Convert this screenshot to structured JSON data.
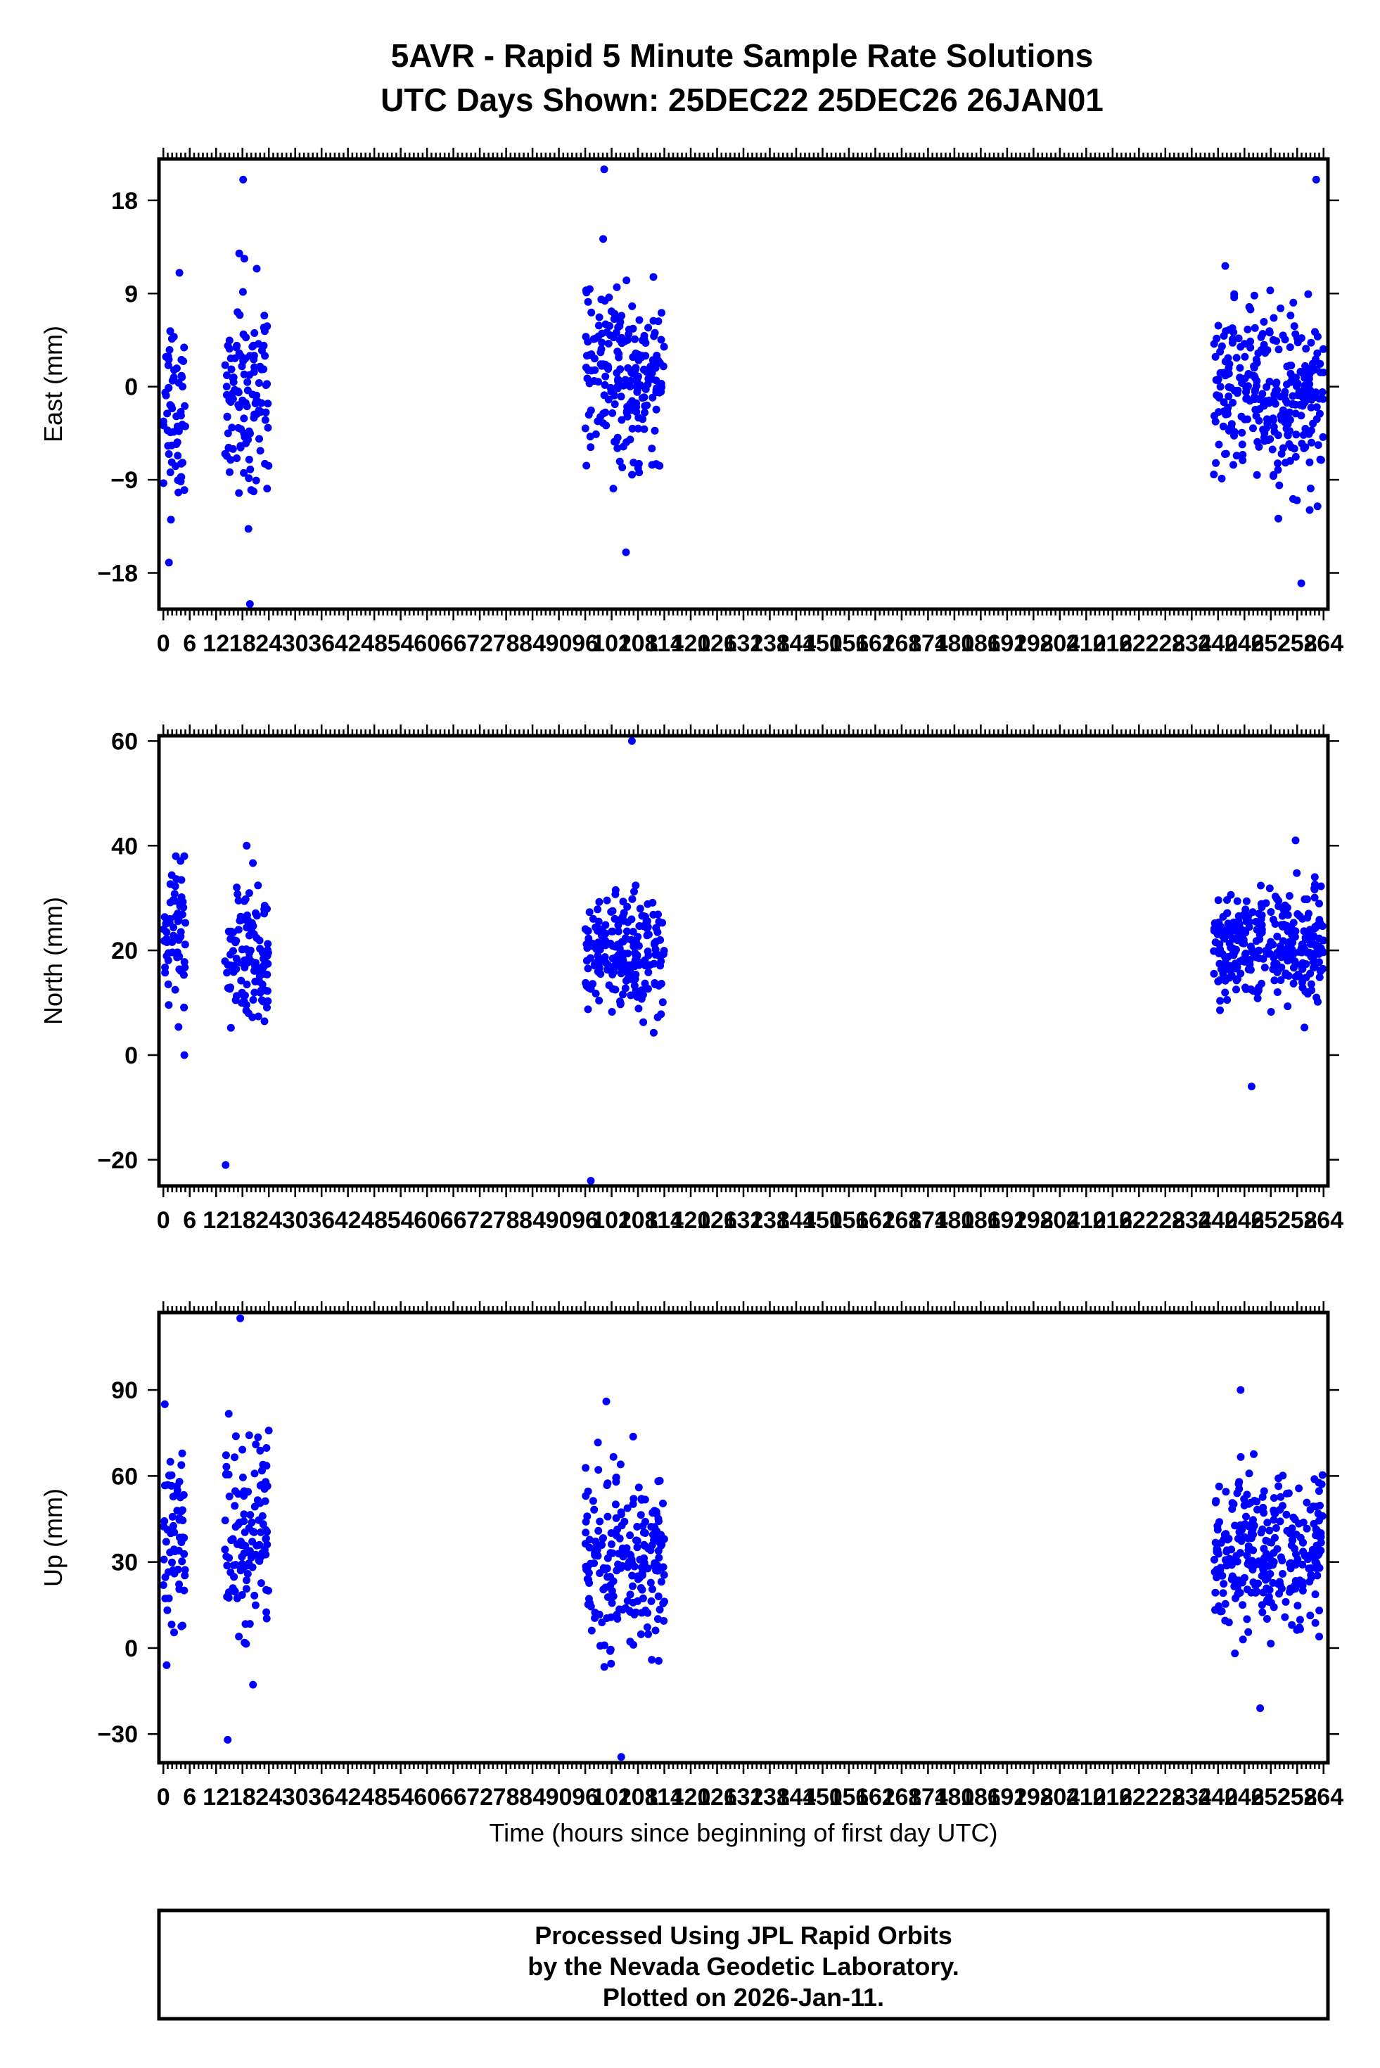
{
  "title_line1": "5AVR - Rapid 5 Minute Sample Rate Solutions",
  "title_line2": "UTC Days Shown:  25DEC22 25DEC26 26JAN01",
  "colors": {
    "points": "#0000ff",
    "frame": "#000000"
  },
  "footer": {
    "line1": "Processed Using JPL Rapid Orbits",
    "line2": "by the Nevada Geodetic Laboratory.",
    "line3": "Plotted on 2026-Jan-11."
  },
  "chart_data": [
    {
      "type": "scatter",
      "ylabel": "East (mm)",
      "xlabel": "",
      "xlim": [
        -1,
        265
      ],
      "ylim": [
        -21.5,
        22
      ],
      "yticks": [
        -18,
        -9,
        0,
        9,
        18
      ],
      "xticks": [
        0,
        6,
        12,
        18,
        24,
        30,
        36,
        42,
        48,
        54,
        60,
        66,
        72,
        78,
        84,
        90,
        96,
        102,
        108,
        114,
        120,
        126,
        132,
        138,
        144,
        150,
        156,
        162,
        168,
        174,
        180,
        186,
        192,
        198,
        204,
        210,
        216,
        222,
        228,
        234,
        240,
        246,
        252,
        258,
        264
      ],
      "clusters": [
        {
          "x": [
            0,
            5
          ],
          "center": -2,
          "spread": 6,
          "min": -17,
          "max": 11
        },
        {
          "x": [
            14,
            24
          ],
          "center": -1,
          "spread": 7,
          "min": -21,
          "max": 20
        },
        {
          "x": [
            96,
            114
          ],
          "center": 1,
          "spread": 5.5,
          "min": -16,
          "max": 21
        },
        {
          "x": [
            239,
            264
          ],
          "center": -1,
          "spread": 5.5,
          "min": -19,
          "max": 20
        }
      ]
    },
    {
      "type": "scatter",
      "ylabel": "North (mm)",
      "xlabel": "",
      "xlim": [
        -1,
        265
      ],
      "ylim": [
        -25,
        61
      ],
      "yticks": [
        -20,
        0,
        20,
        40,
        60
      ],
      "xticks": [
        0,
        6,
        12,
        18,
        24,
        30,
        36,
        42,
        48,
        54,
        60,
        66,
        72,
        78,
        84,
        90,
        96,
        102,
        108,
        114,
        120,
        126,
        132,
        138,
        144,
        150,
        156,
        162,
        168,
        174,
        180,
        186,
        192,
        198,
        204,
        210,
        216,
        222,
        228,
        234,
        240,
        246,
        252,
        258,
        264
      ],
      "clusters": [
        {
          "x": [
            0,
            5
          ],
          "center": 21,
          "spread": 9,
          "min": 0,
          "max": 38
        },
        {
          "x": [
            14,
            24
          ],
          "center": 18,
          "spread": 9,
          "min": -21,
          "max": 40
        },
        {
          "x": [
            96,
            114
          ],
          "center": 19,
          "spread": 7.5,
          "min": -24,
          "max": 60
        },
        {
          "x": [
            239,
            264
          ],
          "center": 21,
          "spread": 7,
          "min": -6,
          "max": 41
        }
      ]
    },
    {
      "type": "scatter",
      "ylabel": "Up (mm)",
      "xlabel": "Time (hours since beginning of first day UTC)",
      "xlim": [
        -1,
        265
      ],
      "ylim": [
        -40,
        117
      ],
      "yticks": [
        -30,
        0,
        30,
        60,
        90
      ],
      "xticks": [
        0,
        6,
        12,
        18,
        24,
        30,
        36,
        42,
        48,
        54,
        60,
        66,
        72,
        78,
        84,
        90,
        96,
        102,
        108,
        114,
        120,
        126,
        132,
        138,
        144,
        150,
        156,
        162,
        168,
        174,
        180,
        186,
        192,
        198,
        204,
        210,
        216,
        222,
        228,
        234,
        240,
        246,
        252,
        258,
        264
      ],
      "clusters": [
        {
          "x": [
            0,
            5
          ],
          "center": 38,
          "spread": 20,
          "min": -6,
          "max": 85
        },
        {
          "x": [
            14,
            24
          ],
          "center": 40,
          "spread": 24,
          "min": -32,
          "max": 115
        },
        {
          "x": [
            96,
            114
          ],
          "center": 33,
          "spread": 20,
          "min": -38,
          "max": 86
        },
        {
          "x": [
            239,
            264
          ],
          "center": 32,
          "spread": 17,
          "min": -21,
          "max": 90
        }
      ]
    }
  ]
}
